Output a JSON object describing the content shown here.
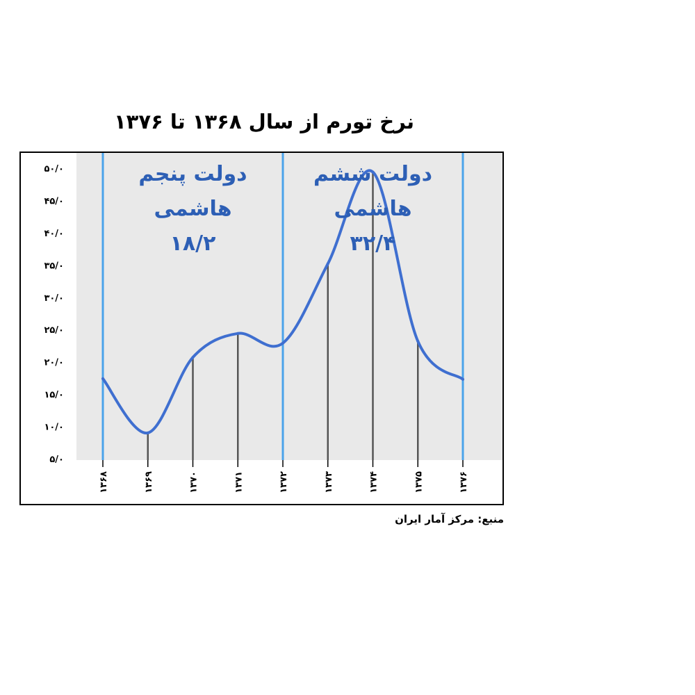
{
  "chart_data": {
    "type": "line",
    "title": "نرخ تورم از سال ۱۳۶۸ تا ۱۳۷۶",
    "xlabel": "",
    "ylabel": "",
    "categories": [
      "۱۳۶۸",
      "۱۳۶۹",
      "۱۳۷۰",
      "۱۳۷۱",
      "۱۳۷۲",
      "۱۳۷۳",
      "۱۳۷۴",
      "۱۳۷۵",
      "۱۳۷۶"
    ],
    "x": [
      1368,
      1369,
      1370,
      1371,
      1372,
      1373,
      1374,
      1375,
      1376
    ],
    "values": [
      17.4,
      9.0,
      20.7,
      24.4,
      22.9,
      35.2,
      49.4,
      23.2,
      17.3
    ],
    "ylim": [
      5,
      50
    ],
    "yticks": [
      5,
      10,
      15,
      20,
      25,
      30,
      35,
      40,
      45,
      50
    ],
    "ytick_labels": [
      "۵/۰",
      "۱۰/۰",
      "۱۵/۰",
      "۲۰/۰",
      "۲۵/۰",
      "۳۰/۰",
      "۳۵/۰",
      "۴۰/۰",
      "۴۵/۰",
      "۵۰/۰"
    ],
    "period_dividers": [
      1368,
      1372,
      1376
    ],
    "annotations": [
      {
        "text": [
          "دولت پنجم",
          "هاشمی",
          "۱۸/۲"
        ],
        "period": [
          1368,
          1372
        ]
      },
      {
        "text": [
          "دولت ششم",
          "هاشمی",
          "۳۲/۴"
        ],
        "period": [
          1372,
          1376
        ]
      }
    ],
    "grid": false,
    "legend": "none",
    "colors": {
      "line": "#3f6fd0",
      "divider": "#4aa3ea",
      "stem": "#555555",
      "plot_bg": "#e9e9e9",
      "annotation": "#2d5fb5"
    }
  },
  "source": "منبع: مرکز آمار ایران"
}
